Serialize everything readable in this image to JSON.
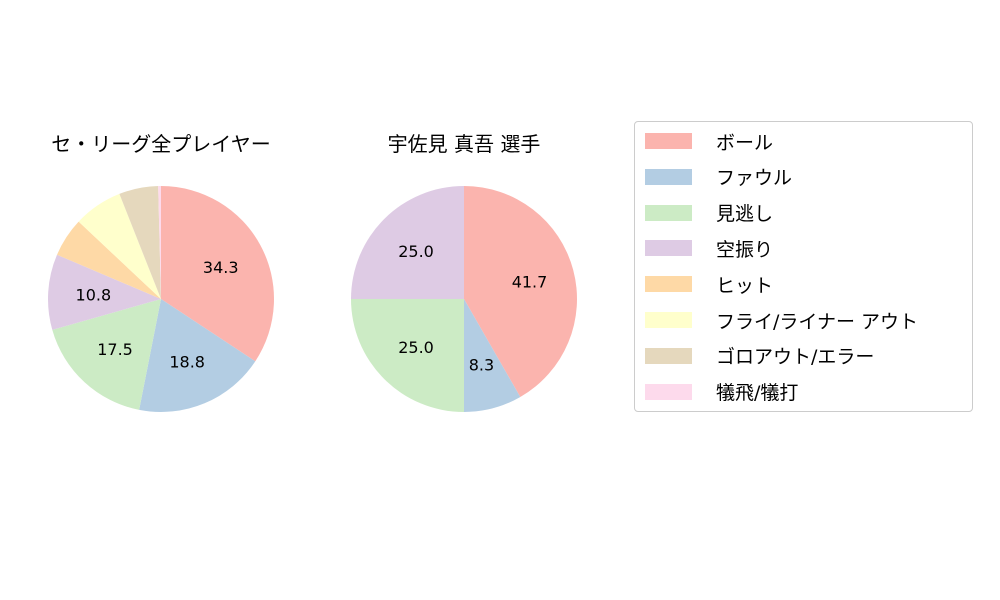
{
  "chart_data": [
    {
      "type": "pie",
      "title": "セ・リーグ全プレイヤー",
      "categories": [
        "ボール",
        "ファウル",
        "見逃し",
        "空振り",
        "ヒット",
        "フライ/ライナー アウト",
        "ゴロアウト/エラー",
        "犠飛/犠打"
      ],
      "values": [
        34.3,
        18.8,
        17.5,
        10.8,
        5.6,
        7.0,
        5.6,
        0.4
      ],
      "labels": [
        "34.3",
        "18.8",
        "17.5",
        "10.8",
        "",
        "",
        "",
        ""
      ],
      "start_angle": 90,
      "direction": "clockwise"
    },
    {
      "type": "pie",
      "title": "宇佐見 真吾  選手",
      "categories": [
        "ボール",
        "ファウル",
        "見逃し",
        "空振り",
        "ヒット",
        "フライ/ライナー アウト",
        "ゴロアウト/エラー",
        "犠飛/犠打"
      ],
      "values": [
        41.7,
        8.3,
        25.0,
        25.0,
        0,
        0,
        0,
        0
      ],
      "labels": [
        "41.7",
        "8.3",
        "25.0",
        "25.0",
        "",
        "",
        "",
        ""
      ],
      "start_angle": 90,
      "direction": "clockwise"
    }
  ],
  "legend": {
    "position": "right",
    "items": [
      {
        "label": "ボール",
        "color": "#fbb4ae"
      },
      {
        "label": "ファウル",
        "color": "#b3cde3"
      },
      {
        "label": "見逃し",
        "color": "#ccebc5"
      },
      {
        "label": "空振り",
        "color": "#decbe4"
      },
      {
        "label": "ヒット",
        "color": "#fed9a6"
      },
      {
        "label": "フライ/ライナー アウト",
        "color": "#ffffcc"
      },
      {
        "label": "ゴロアウト/エラー",
        "color": "#e5d8bd"
      },
      {
        "label": "犠飛/犠打",
        "color": "#fddaec"
      }
    ]
  }
}
